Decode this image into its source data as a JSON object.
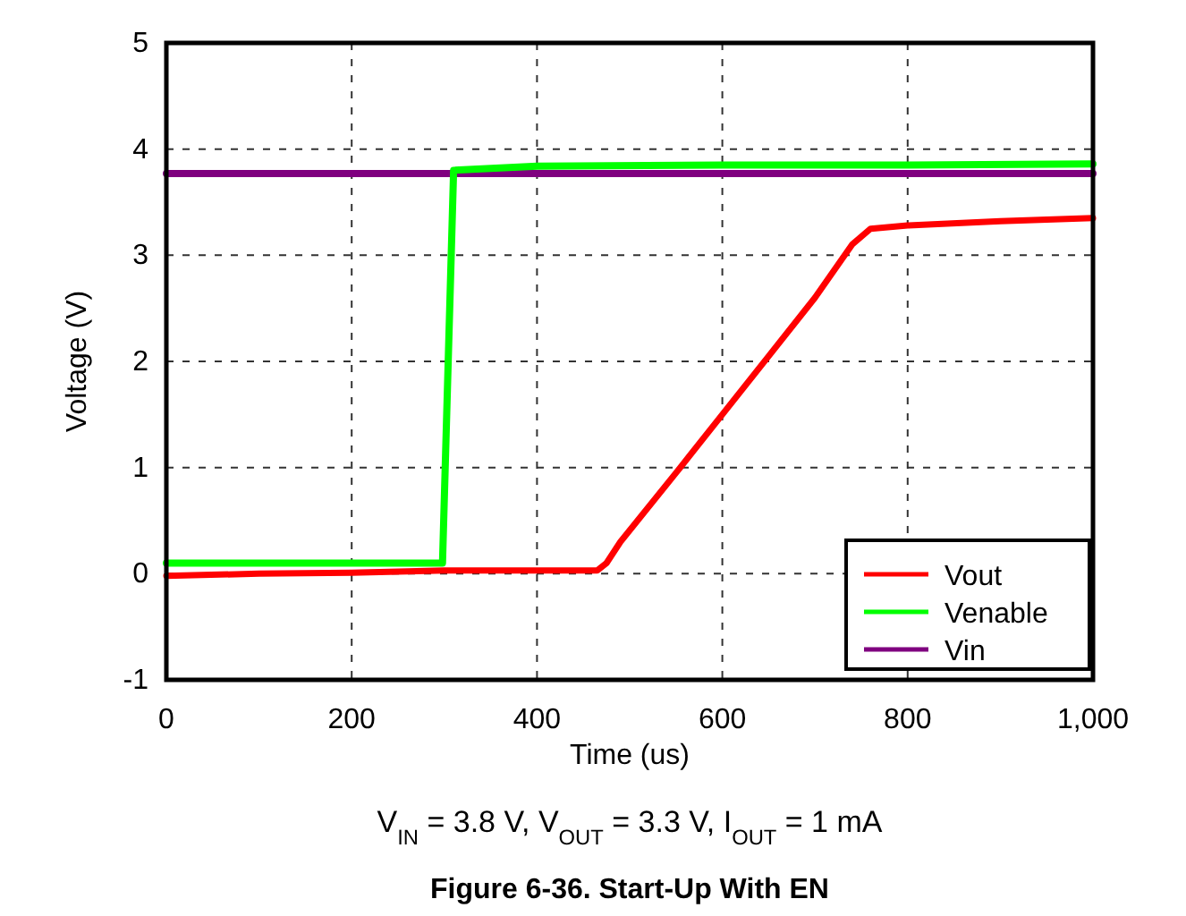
{
  "chart_data": {
    "type": "line",
    "title": "Figure 6-36. Start-Up With EN",
    "xlabel": "Time (us)",
    "ylabel": "Voltage (V)",
    "annotations": [
      "V$_{IN}$ = 3.8 V, V$_{OUT}$ = 3.3 V, I$_{OUT}$ = 1 mA"
    ],
    "xlim": [
      0,
      1000
    ],
    "ylim": [
      -1,
      5
    ],
    "xticks": [
      0,
      200,
      400,
      600,
      800,
      {
        "value": 1000,
        "label": "1,000"
      }
    ],
    "yticks": [
      -1,
      0,
      1,
      2,
      3,
      4,
      5
    ],
    "grid": true,
    "legend": "bottom right",
    "line_style": "solid",
    "marker": "none",
    "series": [
      {
        "name": "Vout",
        "color": "#ff0000",
        "x": [
          0,
          100,
          200,
          300,
          400,
          465,
          475,
          490,
          550,
          600,
          650,
          700,
          740,
          760,
          800,
          900,
          1000
        ],
        "values": [
          -0.02,
          0,
          0.01,
          0.03,
          0.03,
          0.03,
          0.1,
          0.3,
          0.95,
          1.5,
          2.05,
          2.6,
          3.1,
          3.25,
          3.28,
          3.32,
          3.35
        ]
      },
      {
        "name": "Venable",
        "color": "#00ff00",
        "x": [
          0,
          100,
          200,
          298,
          310,
          400,
          600,
          800,
          1000
        ],
        "values": [
          0.1,
          0.1,
          0.1,
          0.1,
          3.8,
          3.84,
          3.85,
          3.85,
          3.86
        ]
      },
      {
        "name": "Vin",
        "color": "#7f007f",
        "x": [
          0,
          200,
          400,
          600,
          800,
          1000
        ],
        "values": [
          3.77,
          3.77,
          3.77,
          3.77,
          3.77,
          3.77
        ]
      }
    ]
  }
}
